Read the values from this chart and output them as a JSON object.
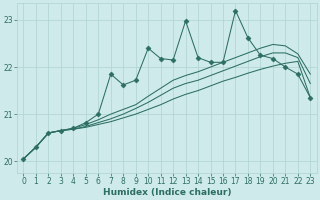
{
  "title": "",
  "xlabel": "Humidex (Indice chaleur)",
  "x": [
    0,
    1,
    2,
    3,
    4,
    5,
    6,
    7,
    8,
    9,
    10,
    11,
    12,
    13,
    14,
    15,
    16,
    17,
    18,
    19,
    20,
    21,
    22,
    23
  ],
  "line_bottom": [
    20.05,
    20.3,
    20.6,
    20.65,
    20.68,
    20.72,
    20.78,
    20.84,
    20.92,
    21.0,
    21.1,
    21.2,
    21.32,
    21.42,
    21.5,
    21.6,
    21.7,
    21.78,
    21.87,
    21.95,
    22.02,
    22.08,
    22.12,
    21.35
  ],
  "line_mid_low": [
    20.05,
    20.3,
    20.6,
    20.65,
    20.68,
    20.74,
    20.82,
    20.9,
    21.0,
    21.12,
    21.25,
    21.4,
    21.55,
    21.65,
    21.72,
    21.82,
    21.92,
    22.02,
    22.12,
    22.22,
    22.3,
    22.3,
    22.2,
    21.65
  ],
  "line_mid_high": [
    20.05,
    20.3,
    20.6,
    20.65,
    20.7,
    20.78,
    20.88,
    21.0,
    21.1,
    21.2,
    21.38,
    21.55,
    21.72,
    21.82,
    21.9,
    22.0,
    22.1,
    22.2,
    22.3,
    22.4,
    22.48,
    22.45,
    22.28,
    21.85
  ],
  "line_zigzag": [
    20.05,
    20.3,
    20.6,
    20.65,
    20.7,
    20.82,
    21.0,
    21.85,
    21.62,
    21.72,
    22.4,
    22.18,
    22.15,
    22.98,
    22.2,
    22.1,
    22.1,
    23.2,
    22.62,
    22.25,
    22.18,
    22.0,
    21.85,
    21.35
  ],
  "ylim": [
    19.75,
    23.35
  ],
  "yticks": [
    20,
    21,
    22,
    23
  ],
  "xticks": [
    0,
    1,
    2,
    3,
    4,
    5,
    6,
    7,
    8,
    9,
    10,
    11,
    12,
    13,
    14,
    15,
    16,
    17,
    18,
    19,
    20,
    21,
    22,
    23
  ],
  "bg_color": "#ceeaea",
  "line_color": "#2d6e63",
  "grid_color": "#aed4d0",
  "font_color": "#2d6e63"
}
